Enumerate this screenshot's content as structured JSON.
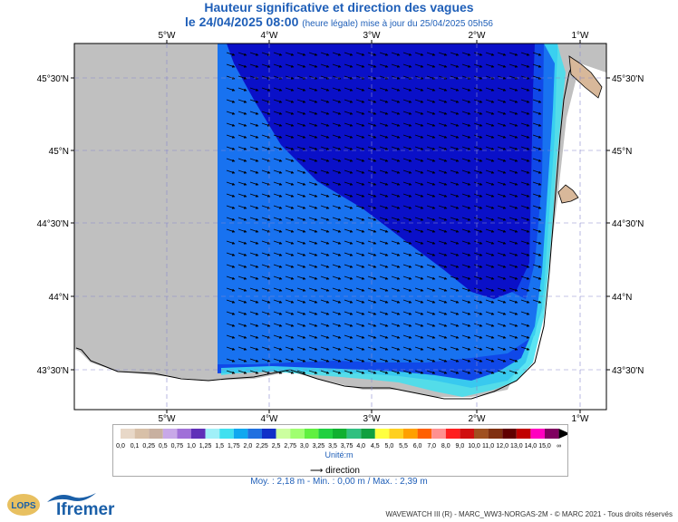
{
  "title": {
    "line1": "Hauteur significative et direction des vagues",
    "date": "le 24/04/2025 08:00",
    "update": "(heure légale) mise à jour du 25/04/2025 05h56"
  },
  "axes": {
    "lon_labels": [
      "5°W",
      "4°W",
      "3°W",
      "2°W",
      "1°W"
    ],
    "lat_labels": [
      "45°30'N",
      "45°N",
      "44°30'N",
      "44°N",
      "43°30'N"
    ]
  },
  "legend": {
    "values": [
      "0,0",
      "0,1",
      "0,25",
      "0,5",
      "0,75",
      "1,0",
      "1,25",
      "1,5",
      "1,75",
      "2,0",
      "2,25",
      "2,5",
      "2,75",
      "3,0",
      "3,25",
      "3,5",
      "3,75",
      "4,0",
      "4,5",
      "5,0",
      "5,5",
      "6,0",
      "7,0",
      "8,0",
      "9,0",
      "10,0",
      "11,0",
      "12,0",
      "13,0",
      "14,0",
      "15,0",
      "∞"
    ],
    "colors": [
      "#e8d8c8",
      "#d8c0a8",
      "#c8b0a0",
      "#c8a8e8",
      "#a070d8",
      "#6030b8",
      "#a0f0f8",
      "#40e0f0",
      "#10a8f0",
      "#2070e0",
      "#1030c8",
      "#ccffa0",
      "#a0ff70",
      "#60f040",
      "#20d040",
      "#10b030",
      "#30c080",
      "#10a040",
      "#ffff40",
      "#ffd020",
      "#ffa000",
      "#ff6000",
      "#ff9090",
      "#ff2020",
      "#d01010",
      "#a05020",
      "#803010",
      "#600000",
      "#c00000",
      "#ff00c0",
      "#800060"
    ],
    "unit": "Unité:m",
    "direction_label": "direction"
  },
  "stats": {
    "text": "Moy. : 2,18 m   -   Min. : 0,00 m / Max. : 2,39 m"
  },
  "footer": "WAVEWATCH III (R) - MARC_WW3-NORGAS-2M - © MARC 2021 - Tous droits réservés",
  "logos": {
    "lops": "LOPS",
    "ifremer": "Ifremer"
  },
  "colors": {
    "title": "#1f5fb8",
    "land": "#c0c0c0",
    "deep": "#0a10c8",
    "mid": "#1040e8",
    "light": "#1870f0"
  }
}
